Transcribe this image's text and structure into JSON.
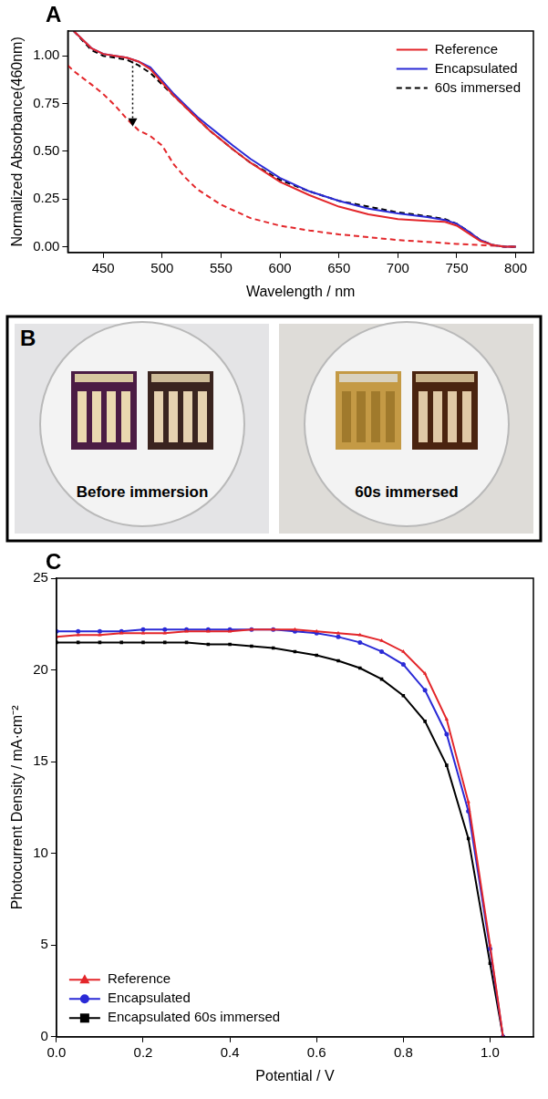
{
  "chart_data": [
    {
      "panel_label": "A",
      "type": "line",
      "x_label": "Wavelength / nm",
      "y_label": "Normalized Absorbance(460nm)",
      "xlim": [
        420,
        815
      ],
      "xticks": [
        450,
        500,
        550,
        600,
        650,
        700,
        750,
        800
      ],
      "ylim": [
        -0.03,
        1.13
      ],
      "yticks": [
        {
          "value": 0,
          "label": "0.00"
        },
        {
          "value": 0.25,
          "label": "0.25"
        },
        {
          "value": 0.5,
          "label": "0.50"
        },
        {
          "value": 0.75,
          "label": "0.75"
        },
        {
          "value": 1,
          "label": "1.00"
        }
      ],
      "grid": false,
      "legend": "upper right",
      "series": [
        {
          "name": "Reference",
          "color": "#e3262a",
          "line_style": "solid",
          "x": [
            425,
            440,
            450,
            460,
            470,
            480,
            490,
            500,
            510,
            520,
            530,
            540,
            550,
            560,
            575,
            600,
            625,
            650,
            675,
            700,
            725,
            740,
            750,
            760,
            770,
            780,
            790,
            800
          ],
          "values": [
            1.13,
            1.04,
            1.01,
            1.0,
            0.99,
            0.97,
            0.93,
            0.86,
            0.79,
            0.73,
            0.67,
            0.61,
            0.56,
            0.51,
            0.44,
            0.34,
            0.27,
            0.21,
            0.17,
            0.145,
            0.135,
            0.13,
            0.11,
            0.07,
            0.03,
            0.01,
            0.0,
            0.0
          ]
        },
        {
          "name": "Encapsulated",
          "color": "#2a2ad6",
          "line_style": "solid",
          "x": [
            425,
            440,
            450,
            460,
            470,
            480,
            490,
            500,
            510,
            520,
            530,
            540,
            550,
            560,
            575,
            600,
            625,
            650,
            675,
            700,
            725,
            740,
            750,
            760,
            770,
            780,
            790,
            800
          ],
          "values": [
            1.13,
            1.04,
            1.01,
            1.0,
            0.99,
            0.97,
            0.94,
            0.87,
            0.8,
            0.74,
            0.68,
            0.63,
            0.58,
            0.53,
            0.46,
            0.36,
            0.29,
            0.24,
            0.2,
            0.175,
            0.155,
            0.14,
            0.12,
            0.08,
            0.035,
            0.01,
            0.0,
            0.0
          ]
        },
        {
          "name": "60s immersed",
          "color": "#000000",
          "line_style": "dashed",
          "x": [
            425,
            440,
            450,
            460,
            470,
            480,
            490,
            500,
            510,
            520,
            530,
            540,
            550,
            560,
            575,
            600,
            625,
            650,
            675,
            700,
            725,
            740,
            750,
            760,
            770,
            780,
            790,
            800
          ],
          "values": [
            1.13,
            1.03,
            1.0,
            0.99,
            0.98,
            0.95,
            0.91,
            0.85,
            0.79,
            0.73,
            0.67,
            0.61,
            0.56,
            0.51,
            0.44,
            0.35,
            0.29,
            0.24,
            0.21,
            0.18,
            0.16,
            0.145,
            0.12,
            0.08,
            0.035,
            0.01,
            0.0,
            0.0
          ]
        },
        {
          "name": null,
          "color": "#e3262a",
          "line_style": "dashed",
          "x": [
            420,
            425,
            440,
            450,
            460,
            470,
            480,
            490,
            500,
            510,
            520,
            530,
            550,
            575,
            600,
            625,
            650,
            700,
            750,
            800
          ],
          "values": [
            0.95,
            0.92,
            0.85,
            0.8,
            0.74,
            0.67,
            0.61,
            0.58,
            0.53,
            0.43,
            0.36,
            0.3,
            0.22,
            0.15,
            0.11,
            0.085,
            0.065,
            0.035,
            0.015,
            0.0
          ]
        }
      ],
      "annotations": [
        {
          "type": "arrow",
          "x": 475,
          "y_from": 0.97,
          "y_to": 0.63
        }
      ]
    },
    {
      "panel_label": "C",
      "type": "line",
      "x_label": "Potential / V",
      "y_label": "Photocurrent Density / mA·cm⁻²",
      "xlim": [
        0,
        1.1
      ],
      "xticks": [
        {
          "value": 0,
          "label": "0.0"
        },
        {
          "value": 0.2,
          "label": "0.2"
        },
        {
          "value": 0.4,
          "label": "0.4"
        },
        {
          "value": 0.6,
          "label": "0.6"
        },
        {
          "value": 0.8,
          "label": "0.8"
        },
        {
          "value": 1,
          "label": "1.0"
        }
      ],
      "ylim": [
        0,
        25
      ],
      "yticks": [
        0,
        5,
        10,
        15,
        20,
        25
      ],
      "grid": false,
      "legend": "lower left",
      "series": [
        {
          "name": "Reference",
          "color": "#e3262a",
          "line_style": "solid",
          "marker": "triangle",
          "x": [
            0,
            0.05,
            0.1,
            0.15,
            0.2,
            0.25,
            0.3,
            0.35,
            0.4,
            0.45,
            0.5,
            0.55,
            0.6,
            0.65,
            0.7,
            0.75,
            0.8,
            0.85,
            0.9,
            0.95,
            1.0,
            1.03
          ],
          "values": [
            21.8,
            21.9,
            21.9,
            22.0,
            22.0,
            22.0,
            22.1,
            22.1,
            22.1,
            22.2,
            22.2,
            22.2,
            22.1,
            22.0,
            21.9,
            21.6,
            21.0,
            19.8,
            17.3,
            12.8,
            5.0,
            0
          ]
        },
        {
          "name": "Encapsulated",
          "color": "#2a2ad6",
          "line_style": "solid",
          "marker": "circle",
          "x": [
            0,
            0.05,
            0.1,
            0.15,
            0.2,
            0.25,
            0.3,
            0.35,
            0.4,
            0.45,
            0.5,
            0.55,
            0.6,
            0.65,
            0.7,
            0.75,
            0.8,
            0.85,
            0.9,
            0.95,
            1.0,
            1.03
          ],
          "values": [
            22.1,
            22.1,
            22.1,
            22.1,
            22.2,
            22.2,
            22.2,
            22.2,
            22.2,
            22.2,
            22.2,
            22.1,
            22.0,
            21.8,
            21.5,
            21.0,
            20.3,
            18.9,
            16.5,
            12.3,
            4.8,
            0
          ]
        },
        {
          "name": "Encapsulated 60s immersed",
          "color": "#000000",
          "line_style": "solid",
          "marker": "square",
          "x": [
            0,
            0.05,
            0.1,
            0.15,
            0.2,
            0.25,
            0.3,
            0.35,
            0.4,
            0.45,
            0.5,
            0.55,
            0.6,
            0.65,
            0.7,
            0.75,
            0.8,
            0.85,
            0.9,
            0.95,
            1.0,
            1.03
          ],
          "values": [
            21.5,
            21.5,
            21.5,
            21.5,
            21.5,
            21.5,
            21.5,
            21.4,
            21.4,
            21.3,
            21.2,
            21.0,
            20.8,
            20.5,
            20.1,
            19.5,
            18.6,
            17.2,
            14.8,
            10.8,
            4.0,
            0
          ]
        }
      ]
    }
  ],
  "photo_panel": {
    "panel_label": "B",
    "captions": [
      "Before immersion",
      "60s immersed"
    ]
  }
}
